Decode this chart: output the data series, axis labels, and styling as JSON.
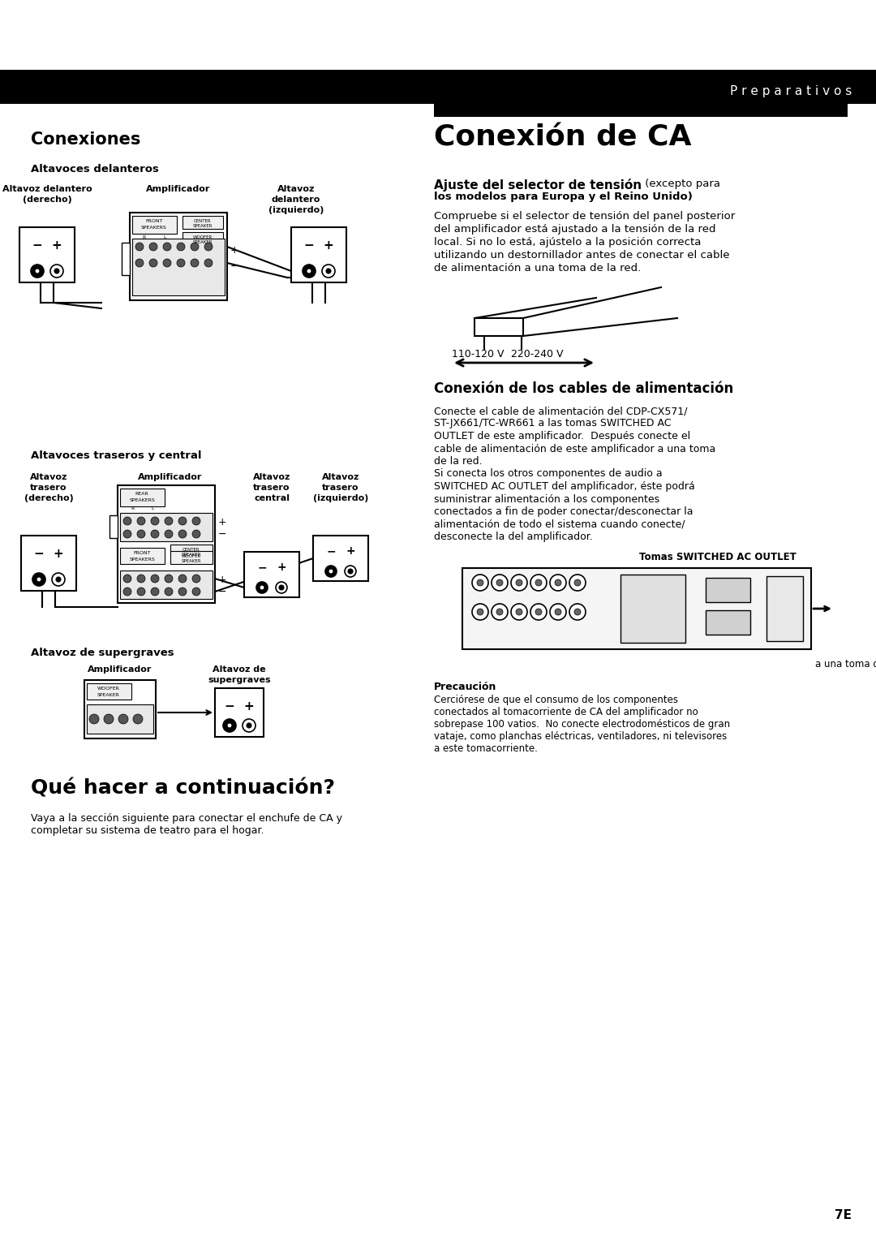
{
  "bg_color": "#ffffff",
  "page_width": 10.8,
  "page_height": 15.28,
  "header_text": "Preparativos",
  "header_text_spaced": "P r e p a r a t i v o s",
  "left_section_title": "Conexiones",
  "sub1_title": "Altavoces delanteros",
  "sub2_title": "Altavoces traseros y central",
  "sub3_title": "Altavoz de supergraves",
  "right_title": "Conexión de CA",
  "subsec1_title_bold": "Ajuste del selector de tensión",
  "subsec1_title_normal": " (excepto para",
  "subsec1_title_line2": "los modelos para Europa y el Reino Unido)",
  "subsec1_body1": "Compruebe si el selector de tensión del panel posterior",
  "subsec1_body2": "del amplificador está ajustado a la tensión de la red",
  "subsec1_body3": "local. Si no lo está, ajústelo a la posición correcta",
  "subsec1_body4": "utilizando un destornillador antes de conectar el cable",
  "subsec1_body5": "de alimentación a una toma de la red.",
  "voltage_label_left": "110-120 V",
  "voltage_label_right": "220-240 V",
  "subsec2_title": "Conexión de los cables de alimentación",
  "subsec2_body": [
    "Conecte el cable de alimentación del CDP-CX571/",
    "ST-JX661/TC-WR661 a las tomas SWITCHED AC",
    "OUTLET de este amplificador.  Después conecte el",
    "cable de alimentación de este amplificador a una toma",
    "de la red.",
    "Si conecta los otros componentes de audio a",
    "SWITCHED AC OUTLET del amplificador, éste podrá",
    "suministrar alimentación a los componentes",
    "conectados a fin de poder conectar/desconectar la",
    "alimentación de todo el sistema cuando conecte/",
    "desconecte la del amplificador."
  ],
  "outlet_label": "Tomas SWITCHED AC OUTLET",
  "network_label": "a una toma de la red",
  "left_bottom_title": "Qué hacer a continuación?",
  "left_bottom_body1": "Vaya a la sección siguiente para conectar el enchufe de CA y",
  "left_bottom_body2": "completar su sistema de teatro para el hogar.",
  "precaucion_title": "Precaución",
  "precaucion_body": [
    "Cerciórese de que el consumo de los componentes",
    "conectados al tomacorriente de CA del amplificador no",
    "sobrepase 100 vatios.  No conecte electrodomésticos de gran",
    "vataje, como planchas eléctricas, ventiladores, ni televisores",
    "a este tomacorriente."
  ],
  "page_number": "7E"
}
